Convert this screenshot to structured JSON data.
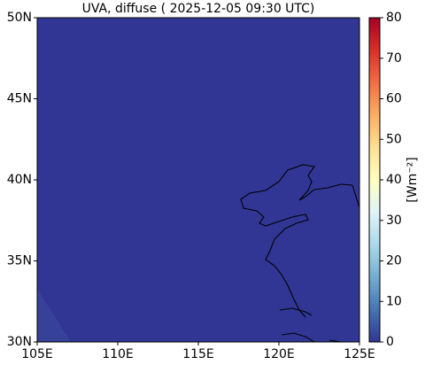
{
  "chart_data": {
    "type": "map",
    "title": "UVA, diffuse ( 2025-12-05 09:30 UTC)",
    "color": "#313695",
    "xlim": [
      105,
      125
    ],
    "xticks": [
      {
        "value": 105,
        "label": "105E"
      },
      {
        "value": 110,
        "label": "110E"
      },
      {
        "value": 115,
        "label": "115E"
      },
      {
        "value": 120,
        "label": "120E"
      },
      {
        "value": 125,
        "label": "125E"
      }
    ],
    "ylim": [
      30,
      50
    ],
    "yticks": [
      {
        "value": 30,
        "label": "30N"
      },
      {
        "value": 35,
        "label": "35N"
      },
      {
        "value": 40,
        "label": "40N"
      },
      {
        "value": 45,
        "label": "45N"
      },
      {
        "value": 50,
        "label": "50N"
      }
    ],
    "colorbar": {
      "label": "[Wm⁻²]",
      "colormap": "RdYlBu_r",
      "lim": [
        0,
        80
      ],
      "ticks": [
        0,
        10,
        20,
        30,
        40,
        50,
        60,
        70,
        80
      ]
    }
  }
}
